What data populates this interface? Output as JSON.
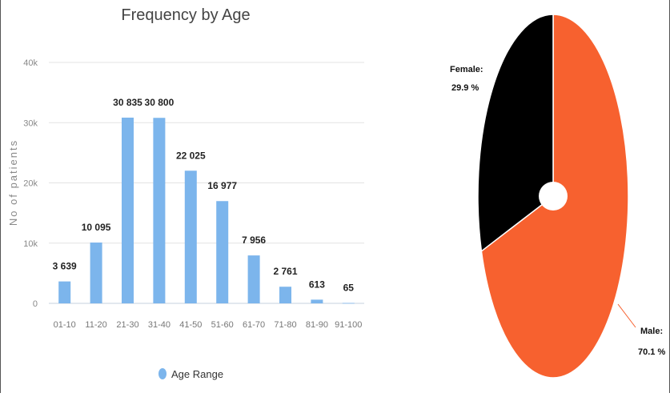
{
  "chart_data": [
    {
      "type": "bar",
      "title": "Frequency by Age",
      "xlabel": "",
      "ylabel": "No of patients",
      "ylim": [
        0,
        40000
      ],
      "y_ticks": [
        "0",
        "10k",
        "20k",
        "30k",
        "40k"
      ],
      "y_tick_values": [
        0,
        10000,
        20000,
        30000,
        40000
      ],
      "grid": true,
      "categories": [
        "01-10",
        "11-20",
        "21-30",
        "31-40",
        "41-50",
        "51-60",
        "61-70",
        "71-80",
        "81-90",
        "91-100"
      ],
      "values": [
        3639,
        10095,
        30835,
        30800,
        22025,
        16977,
        7956,
        2761,
        613,
        65
      ],
      "data_labels": [
        "3 639",
        "10 095",
        "30 835",
        "30 800",
        "22 025",
        "16 977",
        "7 956",
        "2 761",
        "613",
        "65"
      ],
      "series_name": "Age Range",
      "legend_position": "bottom",
      "color": "#7cb5ec"
    },
    {
      "type": "pie",
      "slices": [
        {
          "name": "Male",
          "value": 70.1,
          "label_name": "Male:",
          "label_value": "70.1 %",
          "color": "#f7612f"
        },
        {
          "name": "Female",
          "value": 29.9,
          "label_name": "Female:",
          "label_value": "29.9 %",
          "color": "#000000"
        }
      ]
    }
  ]
}
